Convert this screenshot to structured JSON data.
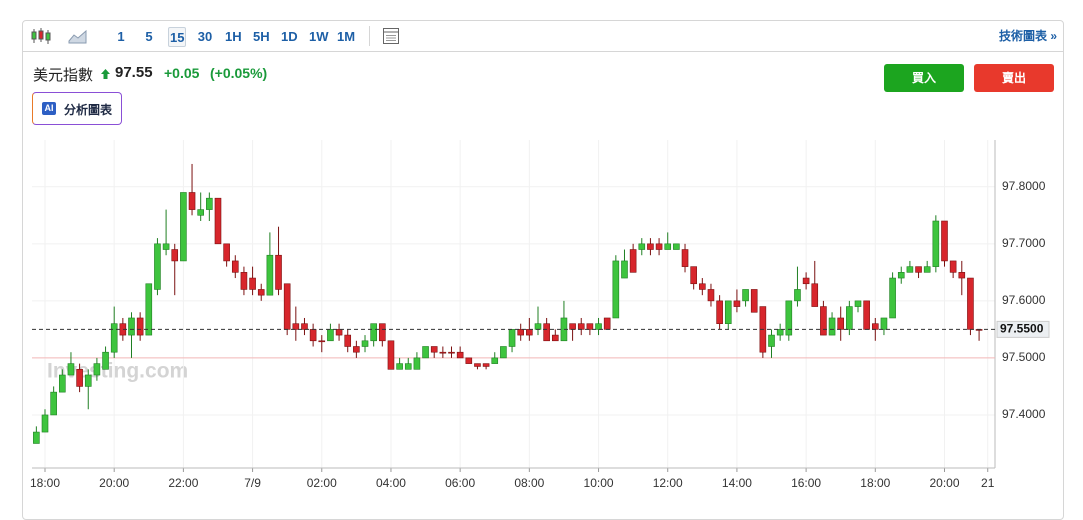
{
  "toolbar": {
    "intervals": [
      "1",
      "5",
      "15",
      "30",
      "1H",
      "5H",
      "1D",
      "1W",
      "1M"
    ],
    "active_interval": 2,
    "link": "技術圖表 »"
  },
  "header": {
    "name": "美元指數",
    "price": "97.55",
    "change": "+0.05",
    "change_pct": "(+0.05%)"
  },
  "buttons": {
    "buy": "買入",
    "sell": "賣出"
  },
  "ai_button": {
    "badge": "AI",
    "label": "分析圖表"
  },
  "chart_data": {
    "type": "candlestick",
    "watermark": "Investing.com",
    "up_color": "#3ec43e",
    "down_color": "#d7262c",
    "grid": true,
    "x": [
      -0.25,
      0,
      0.25,
      0.5,
      0.75,
      1,
      1.25,
      1.5,
      1.75,
      2,
      2.25,
      2.5,
      2.75,
      3,
      3.25,
      3.5,
      3.75,
      4,
      4.25,
      4.5,
      4.75,
      5,
      5.25,
      5.5,
      5.75,
      6,
      6.25,
      6.5,
      6.75,
      7,
      7.25,
      7.5,
      7.75,
      8,
      8.25,
      8.5,
      8.75,
      9,
      9.25,
      9.5,
      9.75,
      10,
      10.25,
      10.5,
      10.75,
      11,
      11.25,
      11.5,
      11.75,
      12,
      12.25,
      12.5,
      12.75,
      13,
      13.25,
      13.5,
      13.75,
      14,
      14.25,
      14.5,
      14.75,
      15,
      15.25,
      15.5,
      15.75,
      16,
      16.25,
      16.5,
      16.75,
      17,
      17.25,
      17.5,
      17.75,
      18,
      18.25,
      18.5,
      18.75,
      19,
      19.25,
      19.5,
      19.75,
      20,
      20.25,
      20.5,
      20.75,
      21,
      21.25,
      21.5,
      21.75,
      22,
      22.25,
      22.5,
      22.75,
      23,
      23.25,
      23.5,
      23.75,
      24,
      24.25,
      24.5,
      24.75,
      25,
      25.25,
      25.5,
      25.75,
      26,
      26.25,
      26.5,
      26.75,
      27
    ],
    "open": [
      97.35,
      97.37,
      97.4,
      97.44,
      97.47,
      97.48,
      97.45,
      97.47,
      97.48,
      97.51,
      97.56,
      97.54,
      97.57,
      97.54,
      97.62,
      97.69,
      97.69,
      97.67,
      97.79,
      97.75,
      97.76,
      97.78,
      97.7,
      97.67,
      97.65,
      97.64,
      97.62,
      97.61,
      97.68,
      97.63,
      97.56,
      97.56,
      97.55,
      97.53,
      97.53,
      97.55,
      97.54,
      97.52,
      97.52,
      97.53,
      97.56,
      97.53,
      97.48,
      97.48,
      97.48,
      97.5,
      97.52,
      97.51,
      97.51,
      97.51,
      97.5,
      97.49,
      97.49,
      97.49,
      97.5,
      97.52,
      97.55,
      97.55,
      97.55,
      97.56,
      97.54,
      97.53,
      97.56,
      97.56,
      97.56,
      97.55,
      97.57,
      97.57,
      97.64,
      97.69,
      97.69,
      97.7,
      97.7,
      97.69,
      97.69,
      97.69,
      97.66,
      97.63,
      97.62,
      97.6,
      97.56,
      97.6,
      97.6,
      97.62,
      97.59,
      97.52,
      97.54,
      97.54,
      97.6,
      97.64,
      97.63,
      97.59,
      97.54,
      97.57,
      97.55,
      97.59,
      97.6,
      97.56,
      97.55,
      97.57,
      97.64,
      97.65,
      97.66,
      97.65,
      97.66,
      97.74,
      97.67,
      97.65,
      97.64,
      97.55
    ],
    "high": [
      97.38,
      97.41,
      97.45,
      97.48,
      97.51,
      97.49,
      97.48,
      97.5,
      97.52,
      97.59,
      97.57,
      97.58,
      97.58,
      97.63,
      97.71,
      97.76,
      97.7,
      97.79,
      97.84,
      97.79,
      97.79,
      97.78,
      97.7,
      97.68,
      97.66,
      97.66,
      97.63,
      97.72,
      97.73,
      97.63,
      97.59,
      97.57,
      97.56,
      97.54,
      97.56,
      97.56,
      97.55,
      97.53,
      97.54,
      97.56,
      97.56,
      97.53,
      97.5,
      97.5,
      97.51,
      97.52,
      97.52,
      97.52,
      97.52,
      97.52,
      97.5,
      97.49,
      97.49,
      97.51,
      97.52,
      97.55,
      97.56,
      97.57,
      97.59,
      97.57,
      97.55,
      97.6,
      97.56,
      97.57,
      97.56,
      97.57,
      97.57,
      97.68,
      97.69,
      97.7,
      97.71,
      97.71,
      97.71,
      97.72,
      97.7,
      97.7,
      97.66,
      97.64,
      97.63,
      97.61,
      97.6,
      97.62,
      97.62,
      97.62,
      97.59,
      97.55,
      97.56,
      97.6,
      97.66,
      97.65,
      97.67,
      97.6,
      97.58,
      97.59,
      97.6,
      97.6,
      97.6,
      97.57,
      97.57,
      97.65,
      97.66,
      97.67,
      97.66,
      97.67,
      97.75,
      97.74,
      97.67,
      97.67,
      97.64,
      97.55
    ],
    "low": [
      97.35,
      97.37,
      97.4,
      97.44,
      97.47,
      97.44,
      97.41,
      97.46,
      97.48,
      97.5,
      97.53,
      97.5,
      97.53,
      97.54,
      97.61,
      97.68,
      97.61,
      97.67,
      97.75,
      97.74,
      97.74,
      97.7,
      97.66,
      97.64,
      97.61,
      97.61,
      97.6,
      97.61,
      97.61,
      97.54,
      97.53,
      97.54,
      97.52,
      97.51,
      97.53,
      97.53,
      97.51,
      97.5,
      97.51,
      97.52,
      97.52,
      97.48,
      97.48,
      97.48,
      97.48,
      97.5,
      97.5,
      97.5,
      97.5,
      97.5,
      97.49,
      97.48,
      97.48,
      97.49,
      97.5,
      97.51,
      97.53,
      97.53,
      97.54,
      97.53,
      97.53,
      97.53,
      97.53,
      97.54,
      97.54,
      97.54,
      97.55,
      97.57,
      97.64,
      97.65,
      97.68,
      97.68,
      97.68,
      97.69,
      97.69,
      97.65,
      97.62,
      97.61,
      97.59,
      97.55,
      97.55,
      97.58,
      97.59,
      97.58,
      97.5,
      97.5,
      97.53,
      97.53,
      97.59,
      97.62,
      97.59,
      97.54,
      97.54,
      97.53,
      97.54,
      97.58,
      97.55,
      97.53,
      97.54,
      97.57,
      97.63,
      97.65,
      97.64,
      97.65,
      97.65,
      97.66,
      97.64,
      97.61,
      97.54,
      97.53
    ],
    "close": [
      97.37,
      97.4,
      97.44,
      97.47,
      97.49,
      97.45,
      97.47,
      97.49,
      97.51,
      97.56,
      97.54,
      97.57,
      97.54,
      97.63,
      97.7,
      97.7,
      97.67,
      97.79,
      97.76,
      97.76,
      97.78,
      97.7,
      97.67,
      97.65,
      97.62,
      97.62,
      97.61,
      97.68,
      97.62,
      97.55,
      97.55,
      97.55,
      97.53,
      97.53,
      97.55,
      97.54,
      97.52,
      97.51,
      97.53,
      97.56,
      97.53,
      97.48,
      97.49,
      97.49,
      97.5,
      97.52,
      97.51,
      97.51,
      97.51,
      97.5,
      97.49,
      97.485,
      97.485,
      97.5,
      97.52,
      97.55,
      97.54,
      97.54,
      97.56,
      97.53,
      97.53,
      97.57,
      97.55,
      97.55,
      97.55,
      97.56,
      97.55,
      97.67,
      97.67,
      97.65,
      97.7,
      97.69,
      97.69,
      97.7,
      97.7,
      97.66,
      97.63,
      97.62,
      97.6,
      97.56,
      97.6,
      97.59,
      97.62,
      97.58,
      97.51,
      97.54,
      97.55,
      97.6,
      97.62,
      97.63,
      97.59,
      97.54,
      97.57,
      97.55,
      97.59,
      97.6,
      97.55,
      97.55,
      97.57,
      97.64,
      97.65,
      97.66,
      97.65,
      97.66,
      97.74,
      97.67,
      97.65,
      97.64,
      97.55,
      97.55
    ],
    "xlim": [
      -0.376,
      27.46
    ],
    "xticks": [
      {
        "value": 0,
        "label": "18:00"
      },
      {
        "value": 2,
        "label": "20:00"
      },
      {
        "value": 4,
        "label": "22:00"
      },
      {
        "value": 6,
        "label": "7/9"
      },
      {
        "value": 8,
        "label": "02:00"
      },
      {
        "value": 10,
        "label": "04:00"
      },
      {
        "value": 12,
        "label": "06:00"
      },
      {
        "value": 14,
        "label": "08:00"
      },
      {
        "value": 16,
        "label": "10:00"
      },
      {
        "value": 18,
        "label": "12:00"
      },
      {
        "value": 20,
        "label": "14:00"
      },
      {
        "value": 22,
        "label": "16:00"
      },
      {
        "value": 24,
        "label": "18:00"
      },
      {
        "value": 26,
        "label": "20:00"
      },
      {
        "value": 27.25,
        "label": "21"
      }
    ],
    "ylim": [
      97.307,
      97.882
    ],
    "yticks": [
      {
        "value": 97.8,
        "label": "97.8000"
      },
      {
        "value": 97.7,
        "label": "97.7000"
      },
      {
        "value": 97.6,
        "label": "97.6000"
      },
      {
        "value": 97.5,
        "label": "97.5000"
      },
      {
        "value": 97.4,
        "label": "97.4000"
      }
    ],
    "last_price": {
      "value": 97.55,
      "label": "97.5500"
    },
    "reference_line": 97.5
  }
}
